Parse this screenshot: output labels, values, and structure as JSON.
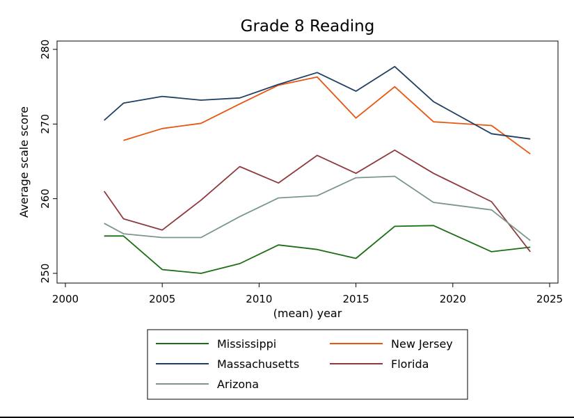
{
  "chart_data": {
    "type": "line",
    "title": "Grade 8 Reading",
    "xlabel": "(mean) year",
    "ylabel": "Average scale score",
    "xlim": [
      2000,
      2025
    ],
    "ylim": [
      250,
      280
    ],
    "xticks": [
      2000,
      2005,
      2010,
      2015,
      2020,
      2025
    ],
    "yticks": [
      250,
      260,
      270,
      280
    ],
    "grid": false,
    "legend_position": "bottom",
    "series": [
      {
        "name": "Mississippi",
        "color": "#1a6e14",
        "x": [
          2002,
          2003,
          2005,
          2007,
          2009,
          2011,
          2013,
          2015,
          2017,
          2019,
          2022,
          2024
        ],
        "values": [
          255.0,
          255.0,
          250.5,
          250.0,
          251.3,
          253.8,
          253.2,
          252.0,
          256.3,
          256.4,
          252.9,
          253.5
        ]
      },
      {
        "name": "New Jersey",
        "color": "#e8550f",
        "x": [
          2003,
          2005,
          2007,
          2009,
          2011,
          2013,
          2015,
          2017,
          2019,
          2022,
          2024
        ],
        "values": [
          267.8,
          269.4,
          270.1,
          272.7,
          275.2,
          276.3,
          270.8,
          275.0,
          270.3,
          269.8,
          266.0
        ]
      },
      {
        "name": "Massachusetts",
        "color": "#1f3f62",
        "x": [
          2002,
          2003,
          2005,
          2007,
          2009,
          2011,
          2013,
          2015,
          2017,
          2019,
          2022,
          2024
        ],
        "values": [
          270.5,
          272.8,
          273.7,
          273.2,
          273.5,
          275.3,
          276.9,
          274.4,
          277.7,
          273.0,
          268.7,
          268.0
        ]
      },
      {
        "name": "Florida",
        "color": "#8e3a3c",
        "x": [
          2002,
          2003,
          2005,
          2007,
          2009,
          2011,
          2013,
          2015,
          2017,
          2019,
          2022,
          2024
        ],
        "values": [
          261.0,
          257.3,
          255.8,
          259.8,
          264.3,
          262.1,
          265.8,
          263.4,
          266.5,
          263.4,
          259.6,
          252.9
        ]
      },
      {
        "name": "Arizona",
        "color": "#7a978a",
        "x": [
          2002,
          2003,
          2005,
          2007,
          2009,
          2011,
          2013,
          2015,
          2017,
          2019,
          2022,
          2024
        ],
        "values": [
          256.7,
          255.3,
          254.8,
          254.8,
          257.6,
          260.1,
          260.4,
          262.8,
          263.0,
          259.5,
          258.5,
          254.4
        ]
      }
    ],
    "legend_layout": [
      [
        "Mississippi",
        "New Jersey"
      ],
      [
        "Massachusetts",
        "Florida"
      ],
      [
        "Arizona"
      ]
    ]
  }
}
